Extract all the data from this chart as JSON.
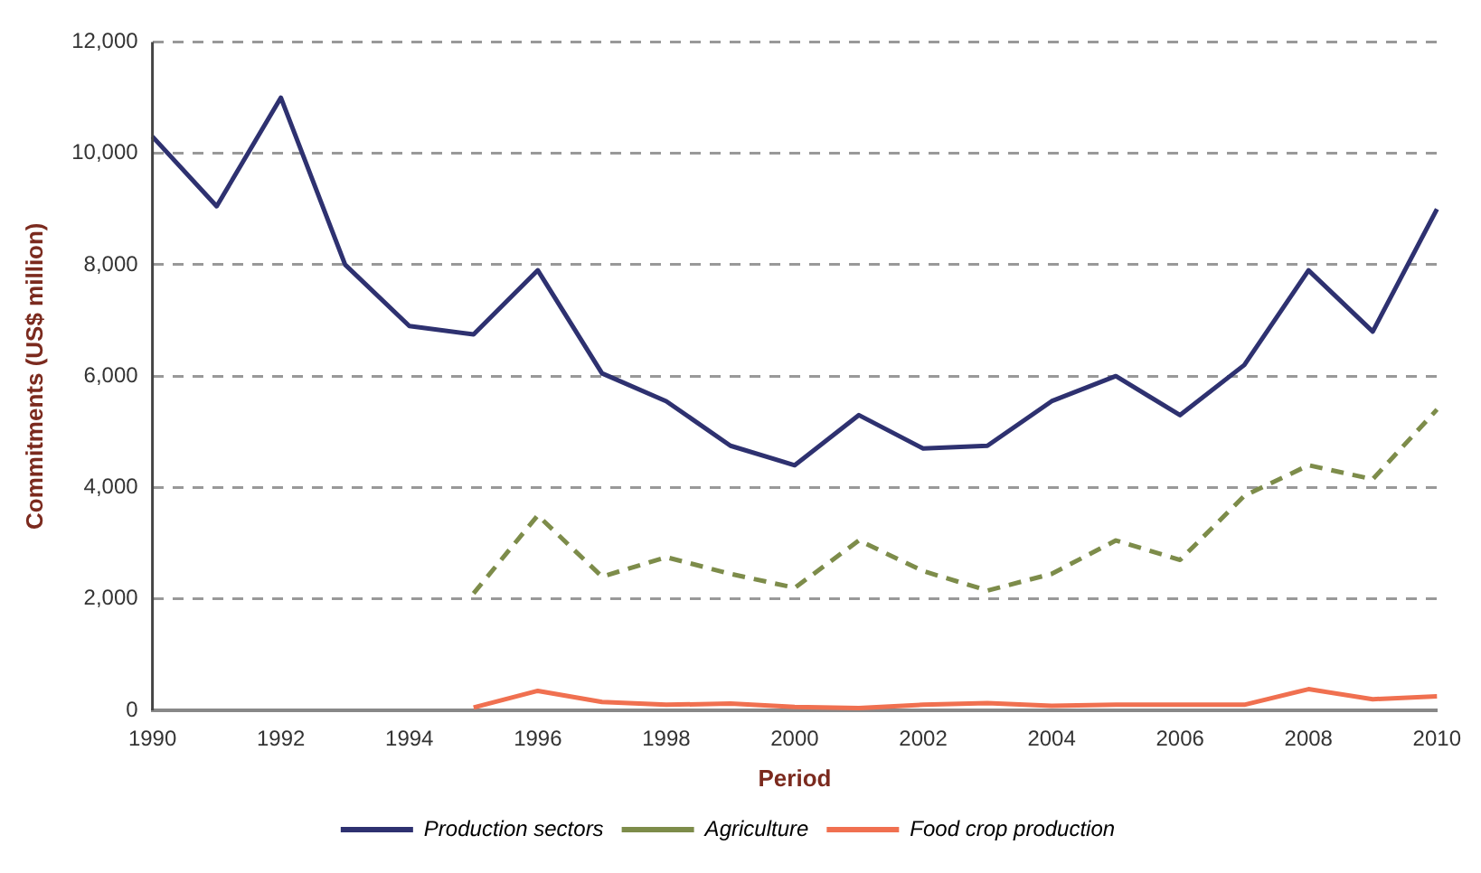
{
  "chart_data": {
    "type": "line",
    "xlabel": "Period",
    "ylabel": "Commitments (US$ million)",
    "categories": [
      "1990",
      null,
      "1992",
      null,
      "1994",
      null,
      "1996",
      null,
      "1998",
      null,
      "2000",
      null,
      "2002",
      null,
      "2004",
      null,
      "2006",
      null,
      "2008",
      null,
      "2010"
    ],
    "series": [
      {
        "name": "Production sectors",
        "color": "#2e3170",
        "line_style": "solid",
        "values": [
          10300,
          9050,
          11000,
          8000,
          6900,
          6750,
          7900,
          6050,
          5550,
          4750,
          4400,
          5300,
          4700,
          4750,
          5550,
          6000,
          5300,
          6200,
          7900,
          6800,
          9000
        ]
      },
      {
        "name": "Agriculture",
        "color": "#7d8c4a",
        "line_style": "dashed",
        "values": [
          null,
          null,
          null,
          null,
          null,
          2100,
          3500,
          2400,
          2750,
          2450,
          2200,
          3050,
          2500,
          2150,
          2450,
          3050,
          2700,
          3850,
          4400,
          4150,
          5400
        ]
      },
      {
        "name": "Food crop production",
        "color": "#f07050",
        "line_style": "solid",
        "values": [
          null,
          null,
          null,
          null,
          null,
          50,
          350,
          150,
          100,
          120,
          60,
          40,
          100,
          130,
          80,
          100,
          100,
          100,
          380,
          200,
          250
        ]
      }
    ],
    "ylim": [
      0,
      12000
    ],
    "yticks": [
      0,
      {
        "value": 2000,
        "label": "2,000"
      },
      {
        "value": 4000,
        "label": "4,000"
      },
      {
        "value": 6000,
        "label": "6,000"
      },
      {
        "value": 8000,
        "label": "8,000"
      },
      {
        "value": 10000,
        "label": "10,000"
      },
      {
        "value": 12000,
        "label": "12,000"
      }
    ],
    "grid": "y",
    "legend": "bottom",
    "marker": "none"
  }
}
